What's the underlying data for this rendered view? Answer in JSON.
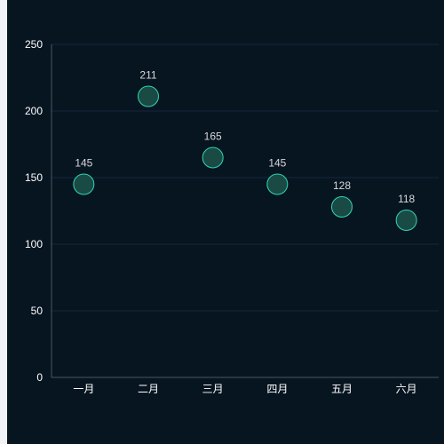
{
  "chart_data": {
    "type": "scatter",
    "title": "",
    "xlabel": "",
    "ylabel": "",
    "categories": [
      "一月",
      "二月",
      "三月",
      "四月",
      "五月",
      "六月"
    ],
    "values": [
      145,
      211,
      165,
      145,
      128,
      118
    ],
    "ylim": [
      0,
      250
    ],
    "yticks": [
      "0",
      "50",
      "100",
      "150",
      "200",
      "250"
    ],
    "data_labels": [
      "145",
      "211",
      "165",
      "145",
      "128",
      "118"
    ],
    "grid": true,
    "colors": {
      "background": "#071521",
      "marker_fill": "#1a4a44",
      "marker_stroke": "#2fd6b4",
      "grid": "#15283a",
      "axis": "#4a5866",
      "tick_text": "#ffffff",
      "label_text": "#d9d9d9"
    }
  }
}
